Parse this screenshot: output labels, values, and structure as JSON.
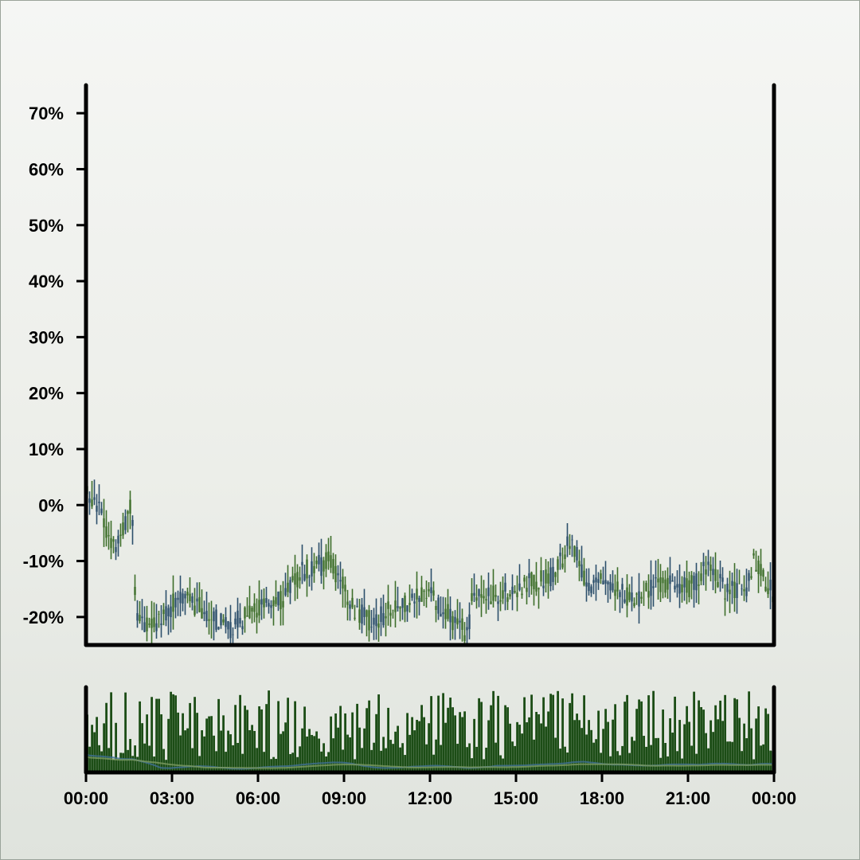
{
  "chart_data": {
    "type": "ohlc",
    "title": "",
    "xlabel": "",
    "ylabel": "",
    "ylim": [
      -25,
      75
    ],
    "y_tick_values": [
      -20,
      -10,
      0,
      10,
      20,
      30,
      40,
      50,
      60,
      70
    ],
    "y_tick_labels": [
      "-20%",
      "-10%",
      "0%",
      "10%",
      "20%",
      "30%",
      "40%",
      "50%",
      "60%",
      "70%"
    ],
    "x_range_hours": [
      0,
      24
    ],
    "x_tick_hours": [
      0,
      3,
      6,
      9,
      12,
      15,
      18,
      21,
      24
    ],
    "x_tick_labels": [
      "00:00",
      "03:00",
      "06:00",
      "09:00",
      "12:00",
      "15:00",
      "18:00",
      "21:00",
      "00:00"
    ],
    "grid": false,
    "legend": "none",
    "colors": {
      "up": "#3d6e2a",
      "down": "#2c4f6b",
      "volume": "#1c4d16",
      "ma_short": "#3f6f95",
      "ma_long": "#7d9c62"
    },
    "price_trend": [
      {
        "t": 0.0,
        "v": 2
      },
      {
        "t": 0.5,
        "v": 0
      },
      {
        "t": 0.9,
        "v": -8
      },
      {
        "t": 1.2,
        "v": -6
      },
      {
        "t": 1.6,
        "v": 0
      },
      {
        "t": 1.75,
        "v": -20
      },
      {
        "t": 2.3,
        "v": -22
      },
      {
        "t": 3.3,
        "v": -16
      },
      {
        "t": 4.2,
        "v": -19
      },
      {
        "t": 5.0,
        "v": -22
      },
      {
        "t": 6.0,
        "v": -18
      },
      {
        "t": 6.8,
        "v": -17
      },
      {
        "t": 7.5,
        "v": -12
      },
      {
        "t": 8.5,
        "v": -10
      },
      {
        "t": 9.3,
        "v": -18
      },
      {
        "t": 10.0,
        "v": -21
      },
      {
        "t": 10.8,
        "v": -18
      },
      {
        "t": 12.0,
        "v": -16
      },
      {
        "t": 12.7,
        "v": -20
      },
      {
        "t": 13.3,
        "v": -23
      },
      {
        "t": 13.5,
        "v": -16
      },
      {
        "t": 14.5,
        "v": -16
      },
      {
        "t": 15.5,
        "v": -14
      },
      {
        "t": 16.3,
        "v": -13
      },
      {
        "t": 16.9,
        "v": -6
      },
      {
        "t": 17.5,
        "v": -14
      },
      {
        "t": 18.3,
        "v": -14
      },
      {
        "t": 19.0,
        "v": -17
      },
      {
        "t": 20.0,
        "v": -14
      },
      {
        "t": 21.0,
        "v": -15
      },
      {
        "t": 21.7,
        "v": -11
      },
      {
        "t": 22.3,
        "v": -15
      },
      {
        "t": 23.0,
        "v": -15
      },
      {
        "t": 23.3,
        "v": -10
      },
      {
        "t": 24.0,
        "v": -16
      }
    ]
  }
}
